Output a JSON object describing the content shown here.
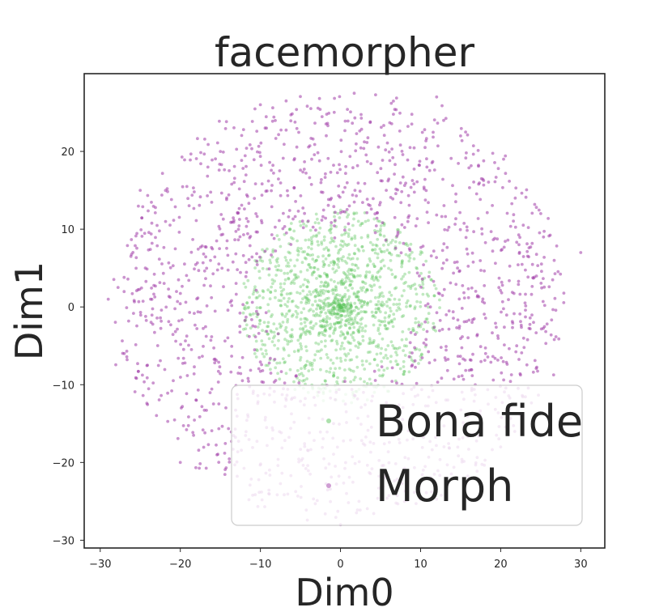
{
  "chart_data": {
    "type": "scatter",
    "title": "facemorpher",
    "xlabel": "Dim0",
    "ylabel": "Dim1",
    "xlim": [
      -32,
      33
    ],
    "ylim": [
      -31,
      30
    ],
    "xticks": [
      -30,
      -20,
      -10,
      0,
      10,
      20,
      30
    ],
    "yticks": [
      -30,
      -20,
      -10,
      0,
      10,
      20
    ],
    "xtick_labels": [
      "−30",
      "−20",
      "−10",
      "0",
      "10",
      "20",
      "30"
    ],
    "ytick_labels": [
      "−30",
      "−20",
      "−10",
      "0",
      "10",
      "20"
    ],
    "grid": false,
    "legend_position": "lower-right",
    "series": [
      {
        "name": "Bona fide",
        "color": "#5cc45c",
        "distribution": "dense cluster centered near (0, 0), mostly within radius ~12",
        "sample_points": [
          [
            0,
            0
          ],
          [
            1,
            1
          ],
          [
            -1,
            -1
          ],
          [
            2,
            -2
          ],
          [
            -3,
            2
          ],
          [
            4,
            4
          ],
          [
            -5,
            -4
          ],
          [
            6,
            1
          ],
          [
            -7,
            3
          ],
          [
            3,
            -8
          ],
          [
            -2,
            9
          ],
          [
            8,
            -5
          ],
          [
            -9,
            -2
          ],
          [
            5,
            10
          ],
          [
            -10,
            6
          ]
        ]
      },
      {
        "name": "Morph",
        "color": "#a03ca8",
        "distribution": "ring-shaped cloud surrounding the Bona fide cluster, radius ~10 to ~29",
        "sample_points": [
          [
            -29,
            1
          ],
          [
            30,
            7
          ],
          [
            12,
            27
          ],
          [
            -10,
            26
          ],
          [
            25,
            12
          ],
          [
            -25,
            15
          ],
          [
            -20,
            -20
          ],
          [
            20,
            -18
          ],
          [
            0,
            -28
          ],
          [
            -27,
            -6
          ],
          [
            15,
            22
          ],
          [
            -15,
            20
          ],
          [
            22,
            -5
          ],
          [
            -18,
            -12
          ],
          [
            8,
            -25
          ]
        ]
      }
    ]
  }
}
